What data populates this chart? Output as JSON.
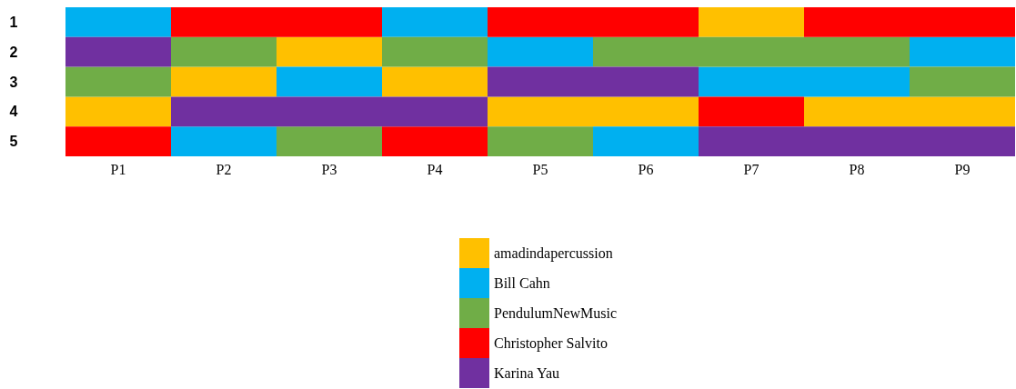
{
  "chart_data": {
    "type": "bar",
    "legend": "bottom",
    "categories": [
      "P1",
      "P2",
      "P3",
      "P4",
      "P5",
      "P6",
      "P7",
      "P8",
      "P9"
    ],
    "ylim": [
      5.5,
      0.5
    ],
    "yticks": [
      1,
      2,
      3,
      4,
      5
    ],
    "series": [
      {
        "name": "amadindapercussion",
        "color": "#ffc000",
        "values": [
          1,
          1,
          1,
          1,
          1,
          1,
          1,
          1,
          1
        ],
        "base": [
          3.5,
          2.5,
          1.5,
          2.5,
          3.5,
          3.5,
          0.5,
          3.5,
          3.5
        ]
      },
      {
        "name": "Bill Cahn",
        "color": "#00b0f0",
        "values": [
          1,
          1,
          1,
          1,
          1,
          1,
          1,
          1,
          1
        ],
        "base": [
          0.5,
          4.5,
          2.5,
          0.5,
          1.5,
          4.5,
          2.5,
          2.5,
          1.5
        ]
      },
      {
        "name": "PendulumNewMusic",
        "color": "#70ad47",
        "values": [
          1,
          1,
          1,
          1,
          1,
          1,
          1,
          1,
          1
        ],
        "base": [
          2.5,
          1.5,
          4.5,
          1.5,
          4.5,
          1.5,
          1.5,
          1.5,
          2.5
        ]
      },
      {
        "name": "Christopher Salvito",
        "color": "#ff0000",
        "values": [
          1,
          1,
          1,
          1,
          1,
          1,
          1,
          1,
          1
        ],
        "base": [
          4.5,
          0.5,
          0.5,
          4.5,
          0.5,
          0.5,
          3.5,
          0.5,
          0.5
        ]
      },
      {
        "name": "Karina Yau",
        "color": "#7030a0",
        "values": [
          1,
          1,
          1,
          1,
          1,
          1,
          1,
          1,
          1
        ],
        "base": [
          1.5,
          3.5,
          3.5,
          3.5,
          2.5,
          2.5,
          4.5,
          4.5,
          4.5
        ]
      }
    ]
  }
}
